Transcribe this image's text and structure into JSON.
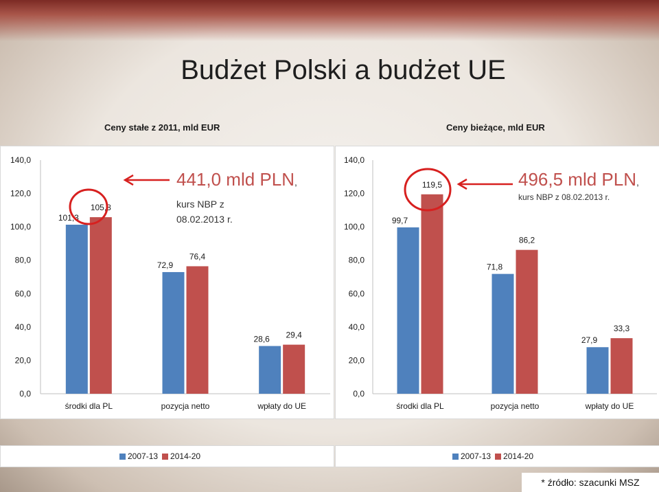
{
  "slide": {
    "title": "Budżet Polski a budżet UE",
    "source": "* źródło: szacunki MSZ"
  },
  "colors": {
    "series1": "#4f81bd",
    "series2": "#c0504d",
    "highlight": "#d7201f"
  },
  "chart_data": [
    {
      "type": "bar",
      "title": "Ceny stałe z 2011, mld EUR",
      "categories": [
        "środki dla PL",
        "pozycja netto",
        "wpłaty do UE"
      ],
      "series": [
        {
          "name": "2007-13",
          "values": [
            101.3,
            72.9,
            28.6
          ],
          "labels": [
            "101,3",
            "72,9",
            "28,6"
          ]
        },
        {
          "name": "2014-20",
          "values": [
            105.8,
            76.4,
            29.4
          ],
          "labels": [
            "105,8",
            "76,4",
            "29,4"
          ]
        }
      ],
      "ylim": [
        0,
        140
      ],
      "yticks": [
        "0,0",
        "20,0",
        "40,0",
        "60,0",
        "80,0",
        "100,0",
        "120,0",
        "140,0"
      ],
      "legend": "bottom",
      "annotation": {
        "big": "441,0 mld PLN",
        "small_after": ", kurs NBP z",
        "line2": "08.02.2013 r.",
        "circled_value": "105,8"
      }
    },
    {
      "type": "bar",
      "title": "Ceny bieżące, mld EUR",
      "categories": [
        "środki dla PL",
        "pozycja netto",
        "wpłaty do UE"
      ],
      "series": [
        {
          "name": "2007-13",
          "values": [
            99.7,
            71.8,
            27.9
          ],
          "labels": [
            "99,7",
            "71,8",
            "27,9"
          ]
        },
        {
          "name": "2014-20",
          "values": [
            119.5,
            86.2,
            33.3
          ],
          "labels": [
            "119,5",
            "86,2",
            "33,3"
          ]
        }
      ],
      "ylim": [
        0,
        140
      ],
      "yticks": [
        "0,0",
        "20,0",
        "40,0",
        "60,0",
        "80,0",
        "100,0",
        "120,0",
        "140,0"
      ],
      "legend": "bottom",
      "annotation": {
        "big": "496,5 mld PLN",
        "small_after": ",",
        "line2": "kurs NBP z 08.02.2013 r.",
        "circled_value": "119,5"
      }
    }
  ]
}
